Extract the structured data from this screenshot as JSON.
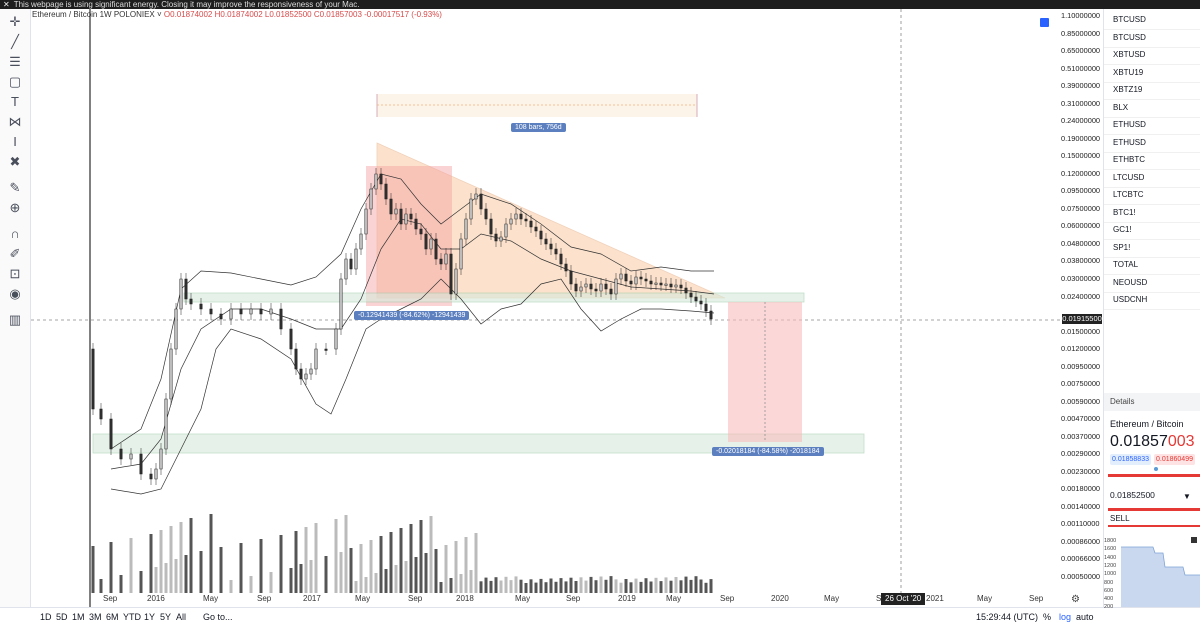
{
  "banner": {
    "text": "This webpage is using significant energy. Closing it may improve the responsiveness of your Mac."
  },
  "header": {
    "symbol": "Ethereum / Bitcoin",
    "interval": "1W",
    "exchange": "POLONIEX",
    "o": "O0.01874002",
    "h": "H0.01874002",
    "l": "L0.01852500",
    "c": "C0.01857003",
    "change": "-0.00017517 (-0.93%)"
  },
  "toolbar": {
    "icons": [
      "cursor-icon",
      "trend-line-icon",
      "fib-icon",
      "rectangle-icon",
      "text-icon",
      "pattern-icon",
      "measure-icon",
      "remove-icon",
      "ruler-icon",
      "zoom-in-icon",
      "magnet-icon",
      "lock-draw-icon",
      "lock-icon",
      "eye-icon",
      "trash-icon"
    ]
  },
  "annotations": {
    "range_label": "108 bars, 756d",
    "measure_1": "-0.12941439 (-84.62%) -12941439",
    "measure_2": "-0.02018184 (-84.58%) -2018184"
  },
  "price_axis": {
    "ticks": [
      "1.10000000",
      "0.85000000",
      "0.65000000",
      "0.51000000",
      "0.39000000",
      "0.31000000",
      "0.24000000",
      "0.19000000",
      "0.15000000",
      "0.12000000",
      "0.09500000",
      "0.07500000",
      "0.06000000",
      "0.04800000",
      "0.03800000",
      "0.03000000",
      "0.02400000",
      "0.01915500",
      "0.01500000",
      "0.01200000",
      "0.00950000",
      "0.00750000",
      "0.00590000",
      "0.00470000",
      "0.00370000",
      "0.00290000",
      "0.00230000",
      "0.00180000",
      "0.00140000",
      "0.00110000",
      "0.00086000",
      "0.00066000",
      "0.00050000"
    ],
    "current": "0.01915500"
  },
  "time_axis": {
    "labels": [
      "Sep",
      "2016",
      "May",
      "Sep",
      "2017",
      "May",
      "Sep",
      "2018",
      "May",
      "Sep",
      "2019",
      "May",
      "Sep",
      "2020",
      "May",
      "Se",
      "2021",
      "May",
      "Sep"
    ],
    "crosshair": "26 Oct '20"
  },
  "bottom_bar": {
    "timeframes": [
      "1D",
      "5D",
      "1M",
      "3M",
      "6M",
      "YTD",
      "1Y",
      "5Y",
      "All"
    ],
    "goto": "Go to...",
    "clock": "15:29:44 (UTC)",
    "percent": "%",
    "log": "log",
    "auto": "auto"
  },
  "watchlist": {
    "items": [
      "BTCUSD",
      "BTCUSD",
      "XBTUSD",
      "XBTU19",
      "XBTZ19",
      "BLX",
      "ETHUSD",
      "ETHUSD",
      "ETHBTC",
      "LTCUSD",
      "LTCBTC",
      "BTC1!",
      "GC1!",
      "SP1!",
      "TOTAL",
      "NEOUSD",
      "USDCNH"
    ]
  },
  "details": {
    "header": "Details",
    "name": "Ethereum / Bitcoin",
    "price_main": "0.01857",
    "price_tail": "003",
    "bid": "0.01858833",
    "ask": "0.01860499",
    "low": "0.01852500",
    "sell": "SELL",
    "mini_ticks": [
      "1800",
      "1600",
      "1400",
      "1200",
      "1000",
      "800",
      "600",
      "400",
      "200"
    ],
    "colors": {
      "up": "#4caf50",
      "down": "#e53935",
      "accent": "#2962ff"
    }
  }
}
